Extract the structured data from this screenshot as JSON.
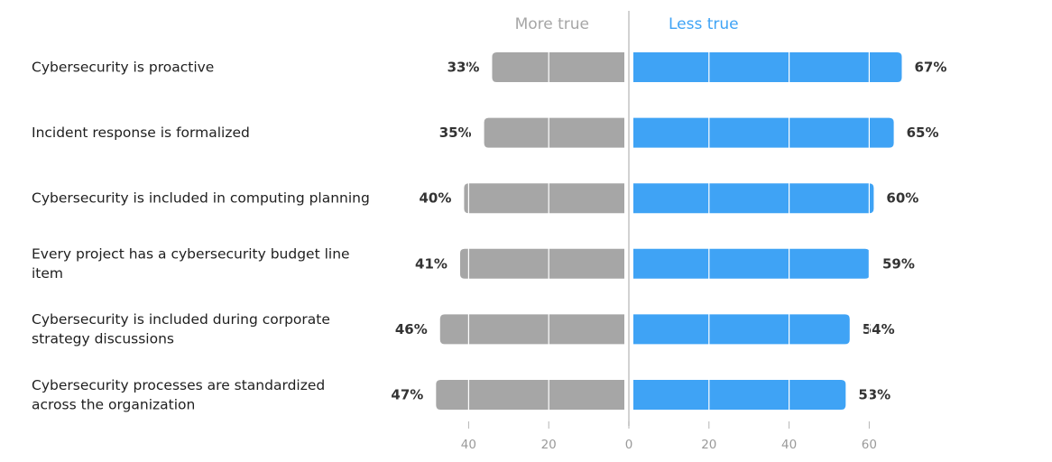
{
  "chart_data": {
    "type": "bar",
    "orientation": "diverging-horizontal",
    "categories": [
      [
        "Cybersecurity is proactive"
      ],
      [
        "Incident response is formalized"
      ],
      [
        "Cybersecurity is included in computing planning"
      ],
      [
        "Every project has a cybersecurity budget line",
        "item"
      ],
      [
        "Cybersecurity is included during corporate",
        "strategy discussions"
      ],
      [
        "Cybersecurity processes are standardized",
        "across the organization"
      ]
    ],
    "series": [
      {
        "name": "More true",
        "values": [
          33,
          35,
          40,
          41,
          46,
          47
        ],
        "labels": [
          "33%",
          "35%",
          "40%",
          "41%",
          "46%",
          "47%"
        ],
        "color": "#a6a6a6",
        "side": "left"
      },
      {
        "name": "Less true",
        "values": [
          67,
          65,
          60,
          59,
          54,
          53
        ],
        "labels": [
          "67%",
          "65%",
          "60%",
          "59%",
          "54%",
          "53%"
        ],
        "color": "#3fa3f5",
        "side": "right"
      }
    ],
    "x_ticks_left": [
      40,
      20,
      0
    ],
    "x_ticks_right": [
      20,
      40,
      60
    ],
    "header_color_left": "#a6a6a6",
    "header_color_right": "#3fa3f5",
    "gridline_color": "#ffffff",
    "grid": true,
    "legend": "top"
  }
}
